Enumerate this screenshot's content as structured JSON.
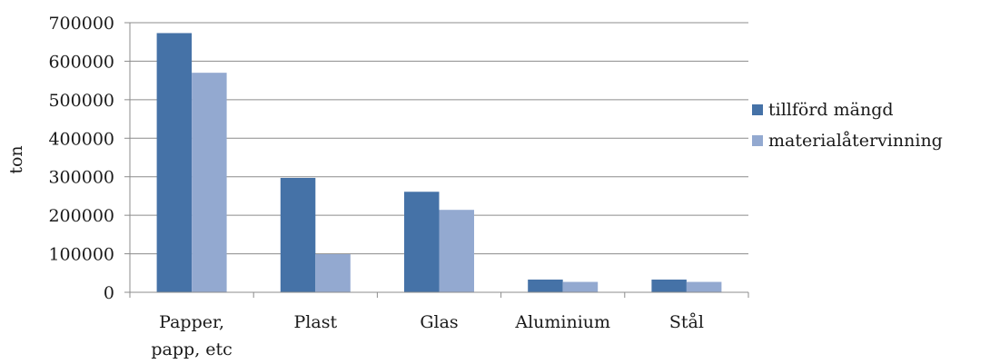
{
  "chart_data": {
    "type": "bar",
    "title": "",
    "xlabel": "",
    "ylabel": "ton",
    "ylim": [
      0,
      700000
    ],
    "yticks": [
      0,
      100000,
      200000,
      300000,
      400000,
      500000,
      600000,
      700000
    ],
    "ytick_labels": [
      "0",
      "100000",
      "200000",
      "300000",
      "400000",
      "500000",
      "600000",
      "700000"
    ],
    "grid": true,
    "legend_position": "right",
    "categories": [
      [
        "Papper,",
        "papp, etc"
      ],
      [
        "Plast"
      ],
      [
        "Glas"
      ],
      [
        "Aluminium"
      ],
      [
        "Stål"
      ]
    ],
    "series": [
      {
        "name": "tillförd mängd",
        "color": "#4572a7",
        "values": [
          673000,
          297000,
          261000,
          33000,
          33000
        ]
      },
      {
        "name": "materialåtervinning",
        "color": "#93a9d0",
        "values": [
          570000,
          99000,
          214000,
          27000,
          27000
        ]
      }
    ]
  }
}
